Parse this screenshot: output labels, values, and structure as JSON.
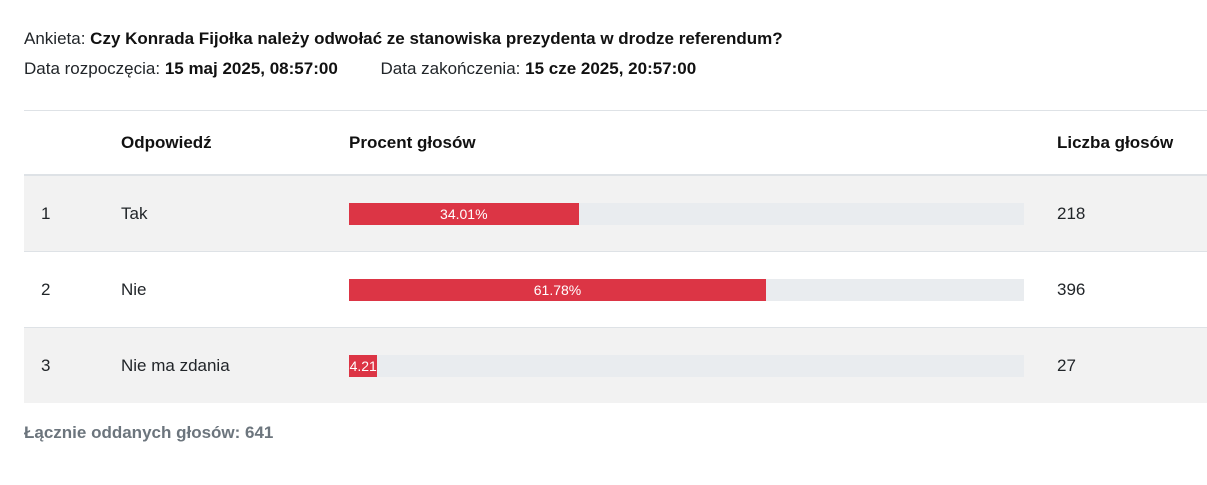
{
  "poll": {
    "question_label": "Ankieta:",
    "question": "Czy Konrada Fijołka należy odwołać ze stanowiska prezydenta w drodze referendum?",
    "start_label": "Data rozpoczęcia:",
    "start_date": "15 maj 2025, 08:57:00",
    "end_label": "Data zakończenia:",
    "end_date": "15 cze 2025, 20:57:00"
  },
  "table": {
    "headers": {
      "num": "",
      "answer": "Odpowiedź",
      "percent": "Procent głosów",
      "count": "Liczba głosów"
    },
    "rows": [
      {
        "num": "1",
        "answer": "Tak",
        "percent": 34.01,
        "percent_label": "34.01%",
        "count": "218"
      },
      {
        "num": "2",
        "answer": "Nie",
        "percent": 61.78,
        "percent_label": "61.78%",
        "count": "396"
      },
      {
        "num": "3",
        "answer": "Nie ma zdania",
        "percent": 4.21,
        "percent_label": "4.21",
        "count": "27"
      }
    ]
  },
  "colors": {
    "bar_fill": "#dc3545",
    "bar_track": "#e9ecef"
  },
  "total": {
    "label": "Łącznie oddanych głosów: 641"
  }
}
